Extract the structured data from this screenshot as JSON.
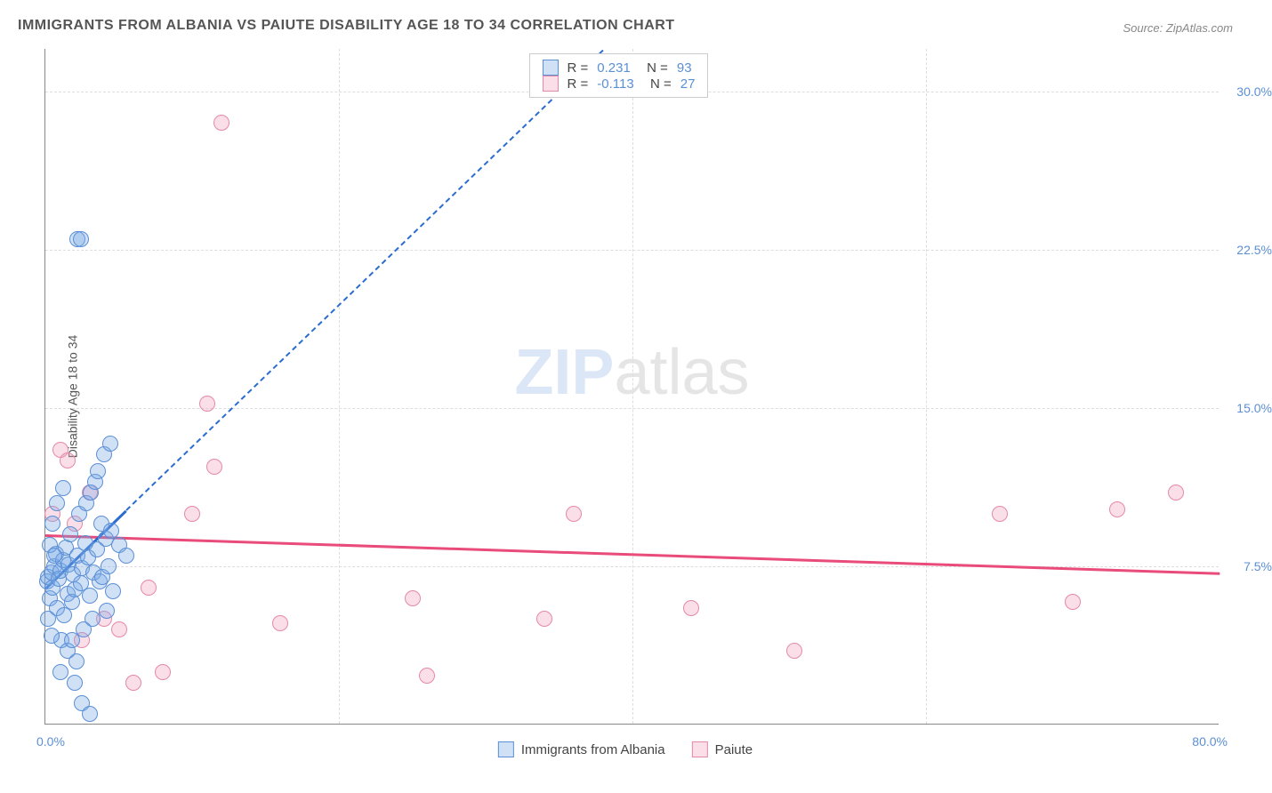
{
  "title": "IMMIGRANTS FROM ALBANIA VS PAIUTE DISABILITY AGE 18 TO 34 CORRELATION CHART",
  "source": "Source: ZipAtlas.com",
  "ylabel": "Disability Age 18 to 34",
  "watermark_a": "ZIP",
  "watermark_b": "atlas",
  "chart": {
    "type": "scatter",
    "xlim": [
      0,
      80
    ],
    "ylim": [
      0,
      32
    ],
    "yticks": [
      7.5,
      15.0,
      22.5,
      30.0
    ],
    "ytick_labels": [
      "7.5%",
      "15.0%",
      "22.5%",
      "30.0%"
    ],
    "xtick_min": "0.0%",
    "xtick_max": "80.0%",
    "xgrid_positions": [
      20,
      40,
      60
    ],
    "background": "#ffffff",
    "grid_color": "#dddddd",
    "axis_color": "#888888",
    "tick_label_color": "#5b8fd6",
    "marker_radius": 9,
    "marker_border": 1.5,
    "series": [
      {
        "name": "Immigrants from Albania",
        "fill": "rgba(120,170,230,0.35)",
        "stroke": "#5b8fd6",
        "trend_color": "#2b6cd1",
        "R": "0.231",
        "N": "93",
        "trend": {
          "x0": 0,
          "y0": 6.5,
          "x1": 5.5,
          "y1": 10.2,
          "dash_x1": 38,
          "dash_y1": 32
        },
        "points": [
          [
            0.1,
            6.8
          ],
          [
            0.2,
            7.0
          ],
          [
            0.3,
            6.0
          ],
          [
            0.4,
            7.2
          ],
          [
            0.5,
            6.5
          ],
          [
            0.6,
            7.5
          ],
          [
            0.7,
            8.1
          ],
          [
            0.8,
            5.5
          ],
          [
            0.9,
            6.9
          ],
          [
            1.0,
            7.3
          ],
          [
            1.1,
            4.0
          ],
          [
            1.2,
            7.8
          ],
          [
            1.3,
            5.2
          ],
          [
            1.4,
            8.4
          ],
          [
            1.5,
            6.2
          ],
          [
            1.6,
            7.6
          ],
          [
            1.7,
            9.0
          ],
          [
            1.8,
            5.8
          ],
          [
            1.9,
            7.1
          ],
          [
            2.0,
            6.4
          ],
          [
            2.1,
            3.0
          ],
          [
            2.2,
            8.0
          ],
          [
            2.3,
            10.0
          ],
          [
            2.4,
            6.7
          ],
          [
            2.5,
            7.4
          ],
          [
            2.6,
            4.5
          ],
          [
            2.7,
            8.6
          ],
          [
            2.8,
            10.5
          ],
          [
            2.9,
            7.9
          ],
          [
            3.0,
            6.1
          ],
          [
            3.1,
            11.0
          ],
          [
            3.2,
            5.0
          ],
          [
            3.3,
            7.2
          ],
          [
            3.4,
            11.5
          ],
          [
            3.5,
            8.3
          ],
          [
            3.6,
            12.0
          ],
          [
            3.7,
            6.8
          ],
          [
            3.8,
            9.5
          ],
          [
            3.9,
            7.0
          ],
          [
            4.0,
            12.8
          ],
          [
            4.1,
            8.8
          ],
          [
            4.2,
            5.4
          ],
          [
            4.3,
            7.5
          ],
          [
            4.4,
            13.3
          ],
          [
            4.5,
            9.2
          ],
          [
            4.6,
            6.3
          ],
          [
            5.0,
            8.5
          ],
          [
            5.5,
            8.0
          ],
          [
            1.0,
            2.5
          ],
          [
            1.5,
            3.5
          ],
          [
            2.0,
            2.0
          ],
          [
            2.5,
            1.0
          ],
          [
            3.0,
            0.5
          ],
          [
            0.5,
            9.5
          ],
          [
            0.8,
            10.5
          ],
          [
            1.2,
            11.2
          ],
          [
            2.2,
            23.0
          ],
          [
            2.4,
            23.0
          ],
          [
            0.3,
            8.5
          ],
          [
            0.6,
            8.0
          ],
          [
            0.2,
            5.0
          ],
          [
            0.4,
            4.2
          ],
          [
            1.8,
            4.0
          ]
        ]
      },
      {
        "name": "Paiute",
        "fill": "rgba(240,160,190,0.35)",
        "stroke": "#e589a9",
        "trend_color": "#e94b7a",
        "R": "-0.113",
        "N": "27",
        "trend": {
          "x0": 0,
          "y0": 9.0,
          "x1": 80,
          "y1": 7.2
        },
        "points": [
          [
            0.5,
            10.0
          ],
          [
            1.0,
            13.0
          ],
          [
            1.5,
            12.5
          ],
          [
            2.0,
            9.5
          ],
          [
            2.5,
            4.0
          ],
          [
            3.0,
            11.0
          ],
          [
            4.0,
            5.0
          ],
          [
            5.0,
            4.5
          ],
          [
            6.0,
            2.0
          ],
          [
            7.0,
            6.5
          ],
          [
            8.0,
            2.5
          ],
          [
            10.0,
            10.0
          ],
          [
            11.0,
            15.2
          ],
          [
            11.5,
            12.2
          ],
          [
            12.0,
            28.5
          ],
          [
            16.0,
            4.8
          ],
          [
            25.0,
            6.0
          ],
          [
            26.0,
            2.3
          ],
          [
            34.0,
            5.0
          ],
          [
            36.0,
            10.0
          ],
          [
            44.0,
            5.5
          ],
          [
            51.0,
            3.5
          ],
          [
            65.0,
            10.0
          ],
          [
            70.0,
            5.8
          ],
          [
            73.0,
            10.2
          ],
          [
            77.0,
            11.0
          ]
        ]
      }
    ]
  },
  "legend_box": {
    "r_label": "R  = ",
    "n_label": "N  = "
  }
}
